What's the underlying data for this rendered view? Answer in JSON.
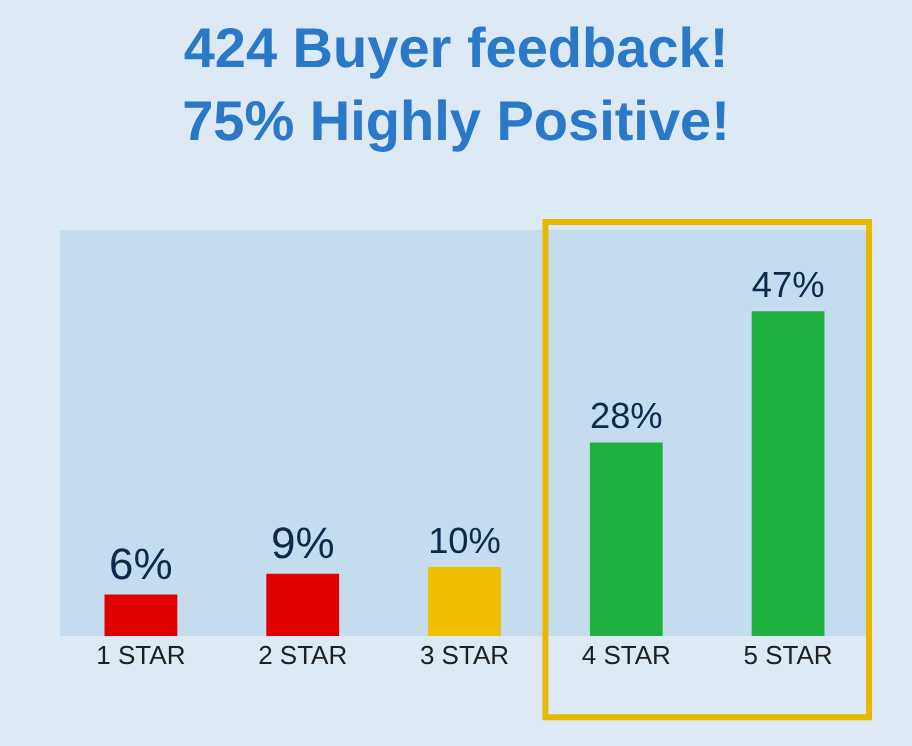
{
  "chart_data": {
    "type": "bar",
    "title": "424 Buyer feedback!\n75% Highly Positive!",
    "categories": [
      "1 STAR",
      "2 STAR",
      "3 STAR",
      "4 STAR",
      "5 STAR"
    ],
    "values": [
      6,
      9,
      10,
      28,
      47
    ],
    "value_labels": [
      "6%",
      "9%",
      "10%",
      "28%",
      "47%"
    ],
    "colors": [
      "#e00000",
      "#e00000",
      "#f0c000",
      "#20b040",
      "#20b040"
    ],
    "grid": false,
    "legend": false
  }
}
